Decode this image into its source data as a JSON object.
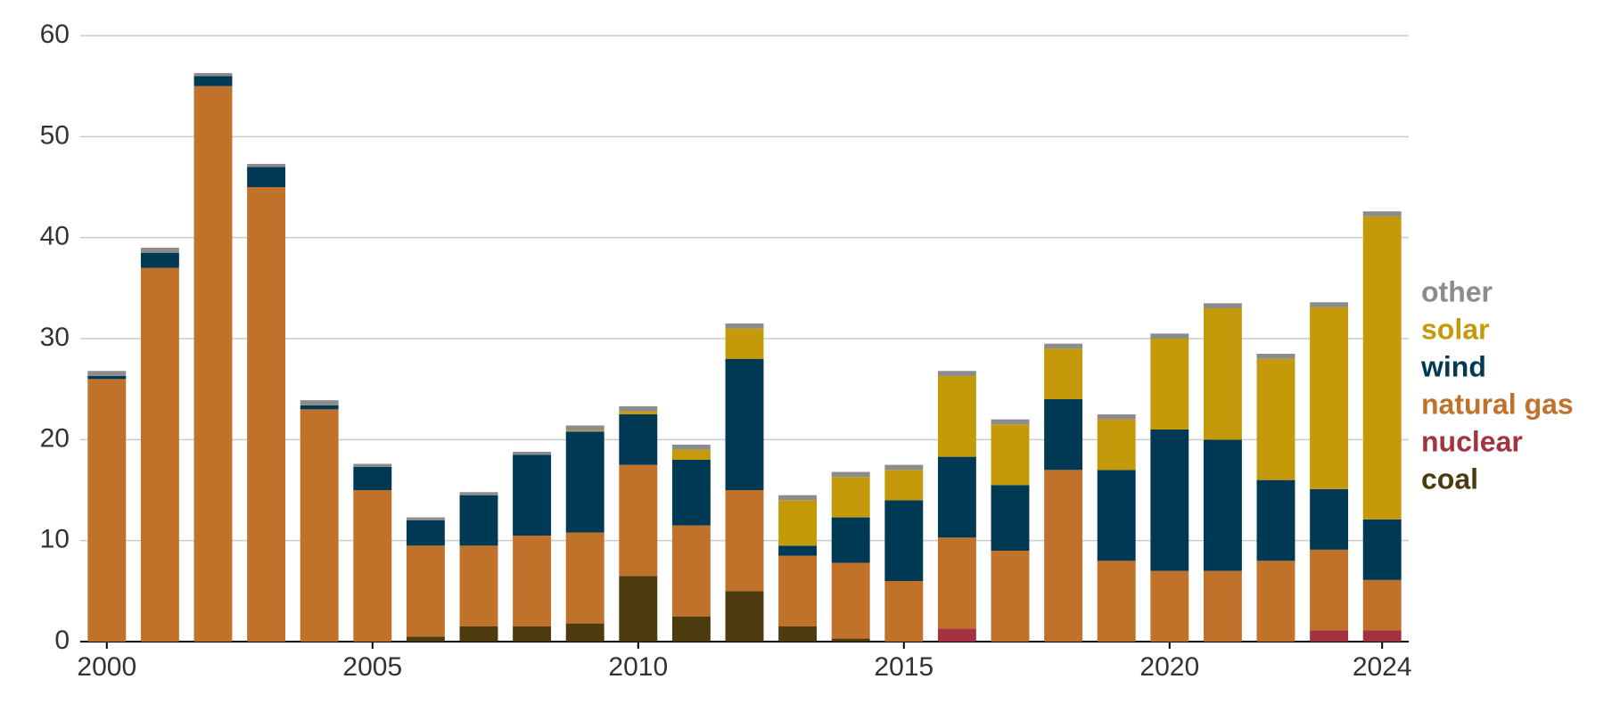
{
  "chart_data": {
    "type": "stacked-bar",
    "categories": [
      "2000",
      null,
      null,
      null,
      null,
      "2005",
      null,
      null,
      null,
      null,
      "2010",
      null,
      null,
      null,
      null,
      "2015",
      null,
      null,
      null,
      null,
      "2020",
      null,
      null,
      null,
      "2024"
    ],
    "series": [
      {
        "name": "coal",
        "color": "#4d3b0f",
        "values": [
          0,
          0,
          0,
          0,
          0,
          0,
          0.5,
          1.5,
          1.5,
          1.8,
          6.5,
          2.5,
          5,
          1.5,
          0.3,
          0,
          0,
          0,
          0,
          0,
          0,
          0,
          0,
          0,
          0
        ]
      },
      {
        "name": "nuclear",
        "color": "#a33340",
        "values": [
          0,
          0,
          0,
          0,
          0,
          0,
          0,
          0,
          0,
          0,
          0,
          0,
          0,
          0,
          0,
          0,
          1.3,
          0,
          0,
          0,
          0,
          0,
          0,
          1.1,
          1.1
        ]
      },
      {
        "name": "natural gas",
        "color": "#c0722b",
        "values": [
          26,
          37,
          55,
          45,
          23,
          15,
          9,
          8,
          9,
          9,
          11,
          9,
          10,
          7,
          7.5,
          6,
          9,
          9,
          17,
          8,
          7,
          7,
          8,
          8,
          5
        ]
      },
      {
        "name": "wind",
        "color": "#003953",
        "values": [
          0.3,
          1.5,
          1,
          2,
          0.4,
          2.3,
          2.5,
          5,
          8,
          10,
          5,
          6.5,
          13,
          1,
          4.5,
          8,
          8,
          6.5,
          7,
          9,
          14,
          13,
          8,
          6,
          6
        ]
      },
      {
        "name": "solar",
        "color": "#c49a0a",
        "values": [
          0,
          0,
          0,
          0,
          0,
          0,
          0,
          0,
          0,
          0.1,
          0.3,
          1,
          3,
          4.5,
          4,
          3,
          8,
          6,
          5,
          5,
          9,
          13,
          12,
          18,
          30
        ]
      },
      {
        "name": "other",
        "color": "#8c8c8c",
        "values": [
          0.5,
          0.5,
          0.3,
          0.3,
          0.5,
          0.3,
          0.3,
          0.3,
          0.3,
          0.5,
          0.5,
          0.5,
          0.5,
          0.5,
          0.5,
          0.5,
          0.5,
          0.5,
          0.5,
          0.5,
          0.5,
          0.5,
          0.5,
          0.5,
          0.5
        ]
      }
    ],
    "ylim": [
      0,
      60
    ],
    "yticks": [
      0,
      10,
      20,
      30,
      40,
      50,
      60
    ],
    "grid": true
  }
}
